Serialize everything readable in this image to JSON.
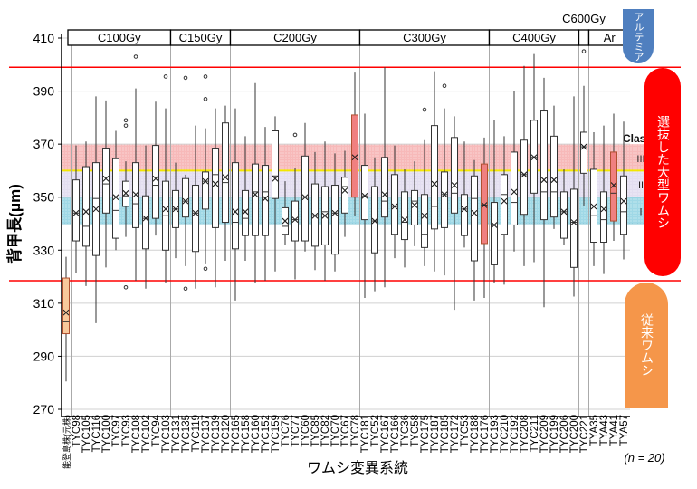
{
  "chart_data": {
    "type": "box",
    "title": "",
    "xlabel": "ワムシ変異系統",
    "ylabel": "背甲長(μm)",
    "ylim": [
      270,
      410
    ],
    "yticks": [
      270,
      290,
      310,
      330,
      350,
      370,
      390,
      410
    ],
    "grid": true,
    "note": "(n = 20)",
    "stat_order": [
      "min",
      "q1",
      "median",
      "q3",
      "max",
      "mean"
    ],
    "groups": [
      {
        "label": "C100Gy",
        "from": "TYC98",
        "to": "TYC103"
      },
      {
        "label": "C150Gy",
        "from": "TYC131",
        "to": "TYC120"
      },
      {
        "label": "C200Gy",
        "from": "TYC165",
        "to": "TYC78"
      },
      {
        "label": "C300Gy",
        "from": "TYC181",
        "to": "TYC176"
      },
      {
        "label": "C400Gy",
        "from": "TYC193",
        "to": "TYC200"
      },
      {
        "label": "C600Gy",
        "from": "TYC221",
        "to": "TYC221"
      },
      {
        "label": "Ar",
        "from": "TYA35",
        "to": "TYA57"
      }
    ],
    "reference_lines": [
      399,
      318.5
    ],
    "class_bands": [
      {
        "label": "I",
        "range": [
          340,
          350
        ],
        "color": "#9fd8e6"
      },
      {
        "label": "II",
        "range": [
          350,
          360
        ],
        "color": "#e3def0"
      },
      {
        "label": "III",
        "range": [
          360,
          370
        ],
        "color": "#f7b9b9"
      }
    ],
    "class_title": "Class",
    "threshold_line_color": "#f2e600",
    "series": [
      {
        "x": "能登島株(元株)",
        "stats": [
          280.5,
          298.5,
          303,
          319.5,
          327.5,
          306.5
        ],
        "outliers": [],
        "color": "#f8c99c"
      },
      {
        "x": "TYC98",
        "stats": [
          321.5,
          333.5,
          344,
          356.5,
          369.5,
          344
        ],
        "outliers": []
      },
      {
        "x": "TYC105",
        "stats": [
          316.5,
          331.5,
          339,
          361.5,
          371,
          344.5
        ],
        "outliers": []
      },
      {
        "x": "TYC116",
        "stats": [
          302.5,
          328,
          349.5,
          363,
          388,
          345.5
        ],
        "outliers": []
      },
      {
        "x": "TYC100",
        "stats": [
          323.5,
          344,
          355,
          368.5,
          386.5,
          357
        ]
      },
      {
        "x": "TYC97",
        "stats": [
          330,
          334.5,
          345,
          364.5,
          375,
          350
        ]
      },
      {
        "x": "TYC93",
        "stats": [
          335,
          346.5,
          350.5,
          356,
          363.5,
          351.5
        ],
        "outliers": [
          379,
          377,
          316
        ]
      },
      {
        "x": "TYC108",
        "stats": [
          318.5,
          338.5,
          347.5,
          363,
          391,
          351
        ],
        "outliers": [
          403
        ]
      },
      {
        "x": "TYC102",
        "stats": [
          315.5,
          330.5,
          342,
          350.5,
          369.5,
          342
        ]
      },
      {
        "x": "TYC94",
        "stats": [
          335.5,
          342,
          354.5,
          369.5,
          386,
          357
        ]
      },
      {
        "x": "TYC103",
        "stats": [
          317.5,
          330,
          343,
          356,
          383.5,
          345.5
        ],
        "outliers": [
          395.5
        ]
      },
      {
        "x": "TYC131",
        "stats": [
          327,
          338.5,
          345.5,
          352.5,
          363,
          345.5
        ]
      },
      {
        "x": "TYC135",
        "stats": [
          324,
          342.5,
          348.5,
          357,
          358.5,
          348.5
        ],
        "outliers": [
          395,
          315.5
        ]
      },
      {
        "x": "TYC119",
        "stats": [
          315.5,
          329.5,
          344,
          354.5,
          377,
          344
        ]
      },
      {
        "x": "TYC137",
        "stats": [
          325,
          345.5,
          356,
          359.5,
          376,
          356
        ],
        "outliers": [
          395.5,
          387,
          323
        ]
      },
      {
        "x": "TYC139",
        "stats": [
          316,
          338.5,
          358.5,
          368.5,
          383.5,
          355
        ]
      },
      {
        "x": "TYC120",
        "stats": [
          326,
          340.5,
          355.5,
          378,
          384.5,
          357.5
        ]
      },
      {
        "x": "TYC165",
        "stats": [
          311,
          330.5,
          340.5,
          363,
          383.5,
          344.5
        ]
      },
      {
        "x": "TYC158",
        "stats": [
          326,
          335.5,
          342,
          352.5,
          373,
          344.5
        ]
      },
      {
        "x": "TYC160",
        "stats": [
          317.5,
          335.5,
          352,
          362.5,
          393,
          351
        ]
      },
      {
        "x": "TYC152",
        "stats": [
          318.5,
          335.5,
          352,
          362,
          376.5,
          349.5
        ]
      },
      {
        "x": "TYC159",
        "stats": [
          322,
          349.5,
          358,
          375,
          380.5,
          357
        ]
      },
      {
        "x": "TYC76",
        "stats": [
          332,
          336,
          339,
          346,
          356,
          341
        ]
      },
      {
        "x": "TYC77",
        "stats": [
          319,
          333.5,
          341.5,
          348.5,
          361,
          341.5
        ],
        "outliers": [
          373.5
        ]
      },
      {
        "x": "TYC60",
        "stats": [
          329.5,
          333.5,
          350,
          365.5,
          378,
          350
        ]
      },
      {
        "x": "TYC85",
        "stats": [
          322.5,
          331.5,
          343,
          355,
          367,
          343
        ]
      },
      {
        "x": "TYC82",
        "stats": [
          318.5,
          332,
          344.5,
          354,
          371,
          343
        ]
      },
      {
        "x": "TYC70",
        "stats": [
          322,
          328.5,
          344,
          354.5,
          366.5,
          344
        ]
      },
      {
        "x": "TYC67",
        "stats": [
          335,
          344,
          354,
          357.5,
          367.5,
          352.5
        ]
      },
      {
        "x": "TYC78",
        "stats": [
          343,
          350,
          361,
          381,
          397,
          365
        ],
        "color": "#f08080"
      },
      {
        "x": "TYC181",
        "stats": [
          312,
          341.5,
          350.5,
          362,
          381.5,
          350.5
        ]
      },
      {
        "x": "TYC52",
        "stats": [
          314.5,
          329,
          341,
          354,
          365,
          341
        ]
      },
      {
        "x": "TYC167",
        "stats": [
          316,
          342.5,
          348.5,
          365,
          399,
          351
        ]
      },
      {
        "x": "TYC166",
        "stats": [
          327,
          336,
          346.5,
          358.5,
          369.5,
          346.5
        ]
      },
      {
        "x": "TYC36",
        "stats": [
          323.5,
          334,
          340.5,
          352,
          360.5,
          341.5
        ]
      },
      {
        "x": "TYC58",
        "stats": [
          331.5,
          339.5,
          348.5,
          352.5,
          363.5,
          347
        ]
      },
      {
        "x": "TYC175",
        "stats": [
          324,
          331,
          336,
          351,
          371.5,
          343
        ],
        "outliers": [
          383
        ]
      },
      {
        "x": "TYC187",
        "stats": [
          322,
          338,
          346.5,
          377,
          397.5,
          355
        ]
      },
      {
        "x": "TYC185",
        "stats": [
          320.5,
          338.5,
          351,
          359.5,
          383.5,
          351
        ],
        "outliers": [
          392
        ]
      },
      {
        "x": "TYC172",
        "stats": [
          307.5,
          344,
          351.5,
          372.5,
          380.5,
          354.5
        ]
      },
      {
        "x": "TYC53",
        "stats": [
          331,
          335.5,
          345.5,
          351,
          371,
          345.5
        ]
      },
      {
        "x": "TYC188",
        "stats": [
          311,
          326,
          349.5,
          358,
          364,
          344
        ]
      },
      {
        "x": "TYC176",
        "stats": [
          312,
          332.5,
          347,
          362.5,
          372.5,
          347
        ],
        "color": "#f08080"
      },
      {
        "x": "TYC193",
        "stats": [
          317.5,
          324.5,
          339.5,
          348,
          379,
          339.5
        ]
      },
      {
        "x": "TYC210",
        "stats": [
          317,
          336,
          351,
          358.5,
          373,
          348.5
        ]
      },
      {
        "x": "TYC192",
        "stats": [
          329.5,
          339.5,
          348,
          367,
          390,
          352
        ]
      },
      {
        "x": "TYC208",
        "stats": [
          324,
          343.5,
          358.5,
          371.5,
          399.5,
          358.5
        ]
      },
      {
        "x": "TYC211",
        "stats": [
          325.5,
          351.5,
          365,
          379,
          404,
          365
        ]
      },
      {
        "x": "TYC209",
        "stats": [
          308.5,
          341.5,
          352,
          382.5,
          395,
          356.5
        ]
      },
      {
        "x": "TYC199",
        "stats": [
          338,
          342.5,
          352,
          373,
          384.5,
          356.5
        ]
      },
      {
        "x": "TYC206",
        "stats": [
          332,
          334.5,
          344.5,
          352,
          360.5,
          344.5
        ]
      },
      {
        "x": "TYC200",
        "stats": [
          312.5,
          323.5,
          340.5,
          353,
          388,
          340.5
        ]
      },
      {
        "x": "TYC221",
        "stats": [
          346.5,
          359,
          369,
          374.5,
          392,
          369
        ],
        "outliers": [
          405
        ]
      },
      {
        "x": "TYA35",
        "stats": [
          324,
          333,
          343,
          360.5,
          374.5,
          346.5
        ]
      },
      {
        "x": "TYA43",
        "stats": [
          321,
          333,
          341.5,
          352,
          377,
          345.5
        ]
      },
      {
        "x": "TYA41",
        "stats": [
          333.5,
          341,
          351.5,
          367,
          381.5,
          354.5
        ],
        "color": "#f08080"
      },
      {
        "x": "TYA57",
        "stats": [
          326.5,
          336,
          344.5,
          358,
          378.5,
          348.5
        ]
      }
    ]
  },
  "side_labels": {
    "artemia": "アルテミア",
    "selected": "選抜した大型ワムシ",
    "conventional": "従来ワムシ"
  },
  "colors": {
    "reference_line": "#ff0000",
    "artemia": "#4f7fbf",
    "selected": "#ff0000",
    "conventional": "#f5964a",
    "box_fill": "#ffffff",
    "box_stroke": "#333333"
  }
}
